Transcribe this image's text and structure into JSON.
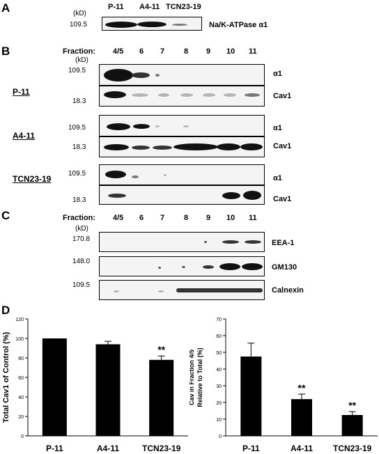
{
  "panels": {
    "A": {
      "letter": "A",
      "unit": "(kD)",
      "lanes": [
        "P-11",
        "A4-11",
        "TCN23-19"
      ],
      "mw": "109.5",
      "protein": "Na/K-ATPase α1"
    },
    "B": {
      "letter": "B",
      "fraction_label": "Fraction:",
      "fractions": [
        "4/5",
        "6",
        "7",
        "8",
        "9",
        "10",
        "11"
      ],
      "unit": "(kD)",
      "mw_alpha": "109.5",
      "mw_cav": "18.3",
      "protein_alpha": "α1",
      "protein_cav": "Cav1",
      "cell_lines": [
        "P-11",
        "A4-11",
        "TCN23-19"
      ]
    },
    "C": {
      "letter": "C",
      "fraction_label": "Fraction:",
      "fractions": [
        "4/5",
        "6",
        "7",
        "8",
        "9",
        "10",
        "11"
      ],
      "unit": "(kD)",
      "blots": [
        {
          "mw": "170.8",
          "protein": "EEA-1"
        },
        {
          "mw": "148.0",
          "protein": "GM130"
        },
        {
          "mw": "109.5",
          "protein": "Calnexin"
        }
      ]
    },
    "D": {
      "letter": "D"
    }
  },
  "chart_data": [
    {
      "type": "bar",
      "categories": [
        "P-11",
        "A4-11",
        "TCN23-19"
      ],
      "values": [
        100,
        94,
        78
      ],
      "errors": [
        0,
        3,
        4
      ],
      "significance": [
        "",
        "",
        "**"
      ],
      "ylabel": "Total Cav1 of Control (%)",
      "ylim": [
        0,
        120
      ],
      "yticks": [
        0,
        20,
        40,
        60,
        80,
        100,
        120
      ],
      "grid": false,
      "color": "#000000"
    },
    {
      "type": "bar",
      "categories": [
        "P-11",
        "A4-11",
        "TCN23-19"
      ],
      "values": [
        47.5,
        22,
        12.5
      ],
      "errors": [
        8,
        3,
        2
      ],
      "significance": [
        "",
        "**",
        "**"
      ],
      "ylabel_lines": [
        "Cav in Fraction 4/5",
        "Relative to Total (%)"
      ],
      "ylim": [
        0,
        70
      ],
      "yticks": [
        0,
        10,
        20,
        30,
        40,
        50,
        60,
        70
      ],
      "grid": false,
      "color": "#000000"
    }
  ]
}
